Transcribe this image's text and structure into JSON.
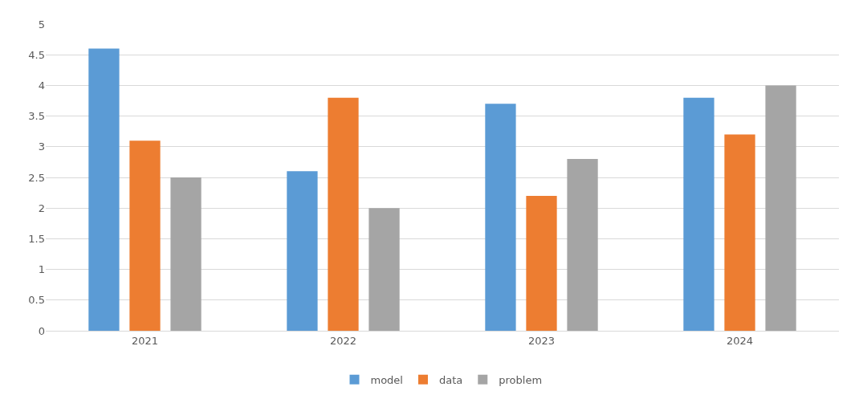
{
  "chart_data": {
    "type": "bar",
    "categories": [
      "2021",
      "2022",
      "2023",
      "2024"
    ],
    "series": [
      {
        "name": "model",
        "color": "#5b9bd5",
        "values": [
          4.6,
          2.6,
          3.7,
          3.8
        ]
      },
      {
        "name": "data",
        "color": "#ed7d31",
        "values": [
          3.1,
          3.8,
          2.2,
          3.2
        ]
      },
      {
        "name": "problem",
        "color": "#a5a5a5",
        "values": [
          2.5,
          2.0,
          2.8,
          4.0
        ]
      }
    ],
    "ylim": [
      0,
      5
    ],
    "yticks": [
      0,
      0.5,
      1,
      1.5,
      2,
      2.5,
      3,
      3.5,
      4,
      4.5,
      5
    ],
    "grid": "y",
    "legend": "bottom"
  }
}
